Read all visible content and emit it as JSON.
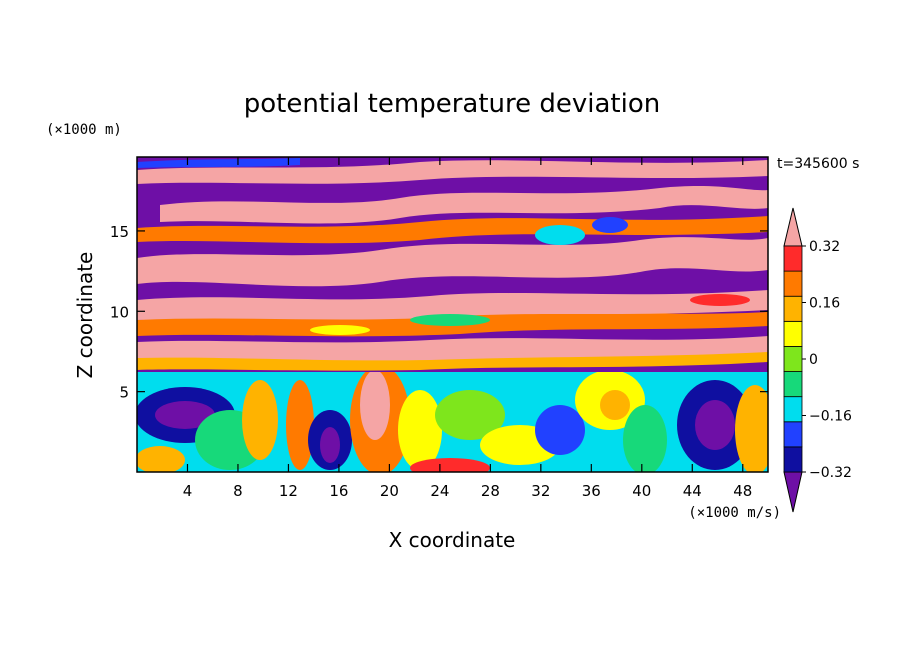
{
  "chart_data": {
    "type": "heatmap",
    "title": "potential temperature deviation",
    "xlabel": "X coordinate",
    "ylabel": "Z coordinate",
    "x_unit": "(×1000 m/s)",
    "y_unit": "(×1000 m)",
    "time_label": "t=345600 s",
    "xlim": [
      0,
      50
    ],
    "ylim": [
      0,
      19.6
    ],
    "x_ticks": [
      4,
      8,
      12,
      16,
      20,
      24,
      28,
      32,
      36,
      40,
      44,
      48
    ],
    "y_ticks": [
      5,
      10,
      15
    ],
    "colorbar": {
      "levels": [
        -0.4,
        -0.32,
        -0.24,
        -0.16,
        -0.08,
        0,
        0.08,
        0.16,
        0.24,
        0.32,
        0.4
      ],
      "labeled_levels": [
        0.32,
        0.16,
        0,
        -0.16,
        -0.32
      ],
      "colors": [
        "#6e0fa6",
        "#0f0fa0",
        "#2141ff",
        "#00ddee",
        "#17d97a",
        "#7ee61c",
        "#ffff00",
        "#ffb300",
        "#ff7a00",
        "#ff2b2b",
        "#f5a5a5"
      ],
      "extend": "both"
    }
  }
}
